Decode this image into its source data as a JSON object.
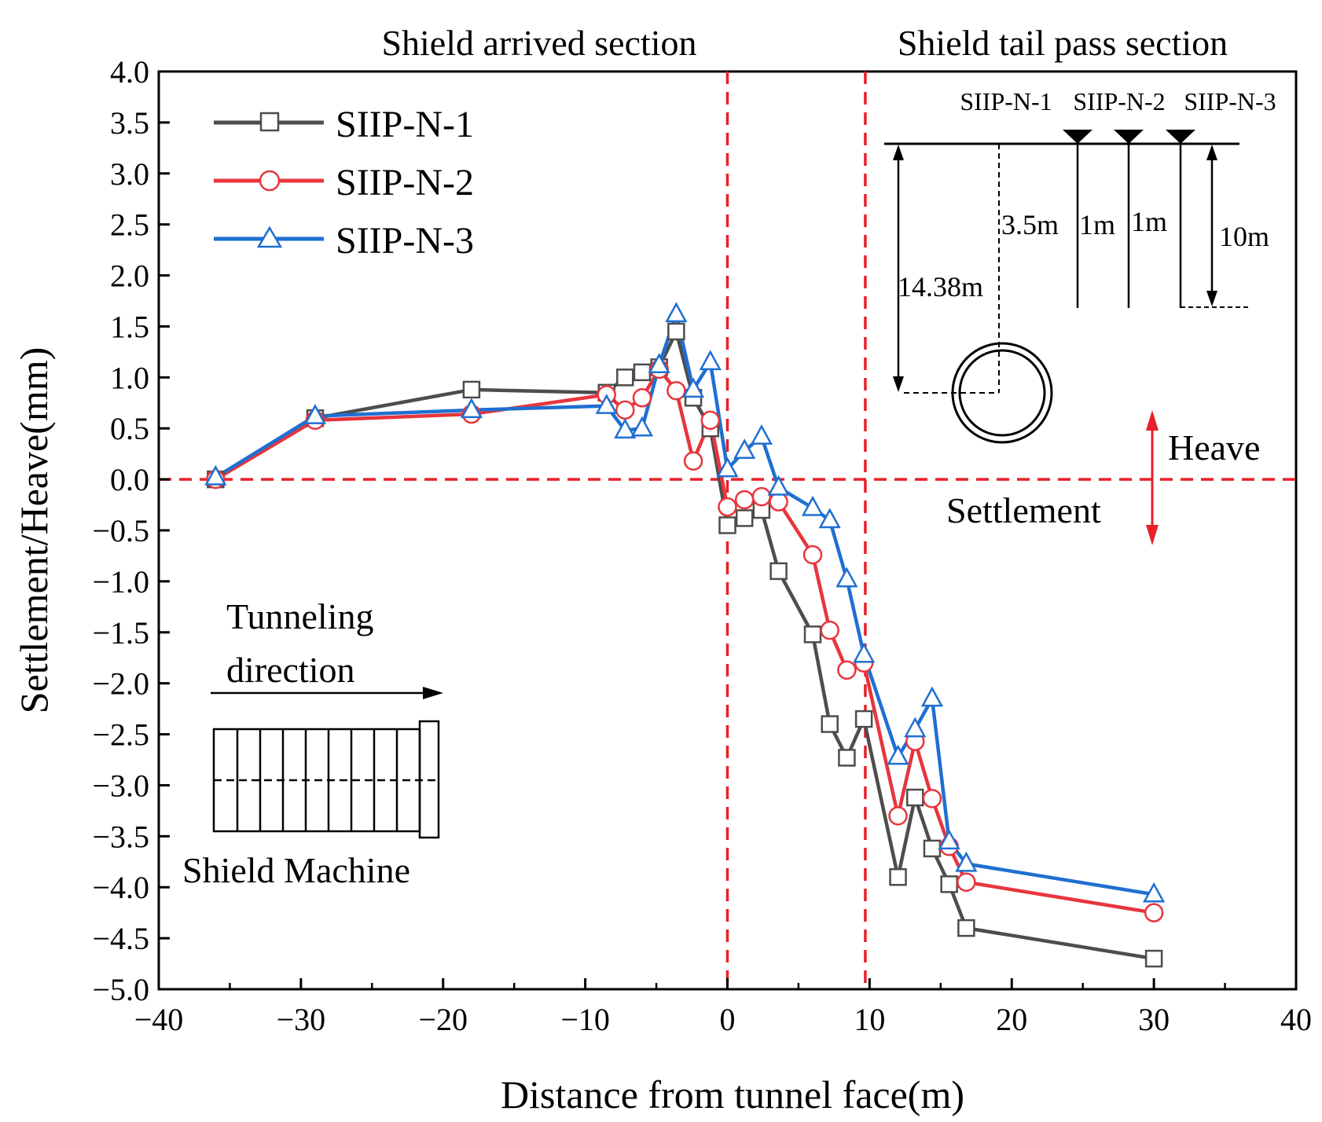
{
  "chart_data": {
    "type": "line",
    "xlabel": "Distance from tunnel face(m)",
    "ylabel": "Settlement/Heave(mm)",
    "xlim": [
      -40,
      40
    ],
    "ylim": [
      -5.0,
      4.0
    ],
    "x_ticks": [
      -40,
      -30,
      -20,
      -10,
      0,
      10,
      20,
      30,
      40
    ],
    "x_tick_labels": [
      "−40",
      "−30",
      "−20",
      "−10",
      "0",
      "10",
      "20",
      "30",
      "40"
    ],
    "y_ticks": [
      4.0,
      3.5,
      3.0,
      2.5,
      2.0,
      1.5,
      1.0,
      0.5,
      0.0,
      -0.5,
      -1.0,
      -1.5,
      -2.0,
      -2.5,
      -3.0,
      -3.5,
      -4.0,
      -4.5,
      -5.0
    ],
    "y_tick_labels": [
      "4.0",
      "3.5",
      "3.0",
      "2.5",
      "2.0",
      "1.5",
      "1.0",
      "0.5",
      "0.0",
      "−0.5",
      "−1.0",
      "−1.5",
      "−2.0",
      "−2.5",
      "−3.0",
      "−3.5",
      "−4.0",
      "−4.5",
      "−5.0"
    ],
    "grid": false,
    "legend_position": "top-left",
    "reference_lines": [
      {
        "orientation": "vertical",
        "value": 0,
        "label": "Shield arrived section",
        "color": "#e8202a"
      },
      {
        "orientation": "vertical",
        "value": 9.7,
        "label": "Shield tail pass section",
        "color": "#e8202a"
      },
      {
        "orientation": "horizontal",
        "value": 0,
        "color": "#e8202a"
      }
    ],
    "series": [
      {
        "name": "SIIP-N-1",
        "color": "#4d4d4d",
        "marker": "square",
        "x": [
          -36,
          -29,
          -18,
          -8.5,
          -7.2,
          -6.0,
          -4.8,
          -3.6,
          -2.4,
          -1.2,
          0,
          1.2,
          2.4,
          3.6,
          6.0,
          7.2,
          8.4,
          9.6,
          12.0,
          13.2,
          14.4,
          15.6,
          16.8,
          30
        ],
        "y": [
          0.0,
          0.6,
          0.88,
          0.85,
          1.0,
          1.05,
          1.1,
          1.45,
          0.8,
          0.5,
          -0.45,
          -0.38,
          -0.3,
          -0.9,
          -1.52,
          -2.4,
          -2.73,
          -2.35,
          -3.9,
          -3.12,
          -3.62,
          -3.97,
          -4.4,
          -4.7
        ]
      },
      {
        "name": "SIIP-N-2",
        "color": "#e8353d",
        "marker": "circle",
        "x": [
          -36,
          -29,
          -18,
          -8.5,
          -7.2,
          -6.0,
          -4.8,
          -3.6,
          -2.4,
          -1.2,
          0,
          1.2,
          2.4,
          3.6,
          6.0,
          7.2,
          8.4,
          9.6,
          12.0,
          13.2,
          14.4,
          15.6,
          16.8,
          30
        ],
        "y": [
          0.0,
          0.58,
          0.64,
          0.83,
          0.68,
          0.8,
          1.08,
          0.87,
          0.18,
          0.58,
          -0.27,
          -0.2,
          -0.17,
          -0.22,
          -0.74,
          -1.48,
          -1.87,
          -1.8,
          -3.3,
          -2.57,
          -3.13,
          -3.6,
          -3.95,
          -4.25
        ]
      },
      {
        "name": "SIIP-N-3",
        "color": "#1f6fd1",
        "marker": "triangle",
        "x": [
          -36,
          -29,
          -18,
          -8.5,
          -7.2,
          -6.0,
          -4.8,
          -3.6,
          -2.4,
          -1.2,
          0,
          1.2,
          2.4,
          3.6,
          6.0,
          7.2,
          8.4,
          9.6,
          12.0,
          13.2,
          14.4,
          15.6,
          16.8,
          30
        ],
        "y": [
          0.02,
          0.62,
          0.68,
          0.72,
          0.48,
          0.5,
          1.12,
          1.62,
          0.88,
          1.15,
          0.1,
          0.28,
          0.42,
          -0.08,
          -0.28,
          -0.4,
          -0.98,
          -1.72,
          -2.72,
          -2.45,
          -2.15,
          -3.55,
          -3.77,
          -4.07
        ]
      }
    ],
    "annotations": {
      "heave": "Heave",
      "settlement": "Settlement",
      "tunneling_line1": "Tunneling",
      "tunneling_line2": "direction",
      "shield_machine": "Shield Machine"
    },
    "inset": {
      "point_labels": [
        "SIIP-N-1",
        "SIIP-N-2",
        "SIIP-N-3"
      ],
      "depth_tunnel": "14.38m",
      "spacing_1": "3.5m",
      "spacing_2": "1m",
      "spacing_3": "1m",
      "depth_pipe": "10m"
    }
  }
}
